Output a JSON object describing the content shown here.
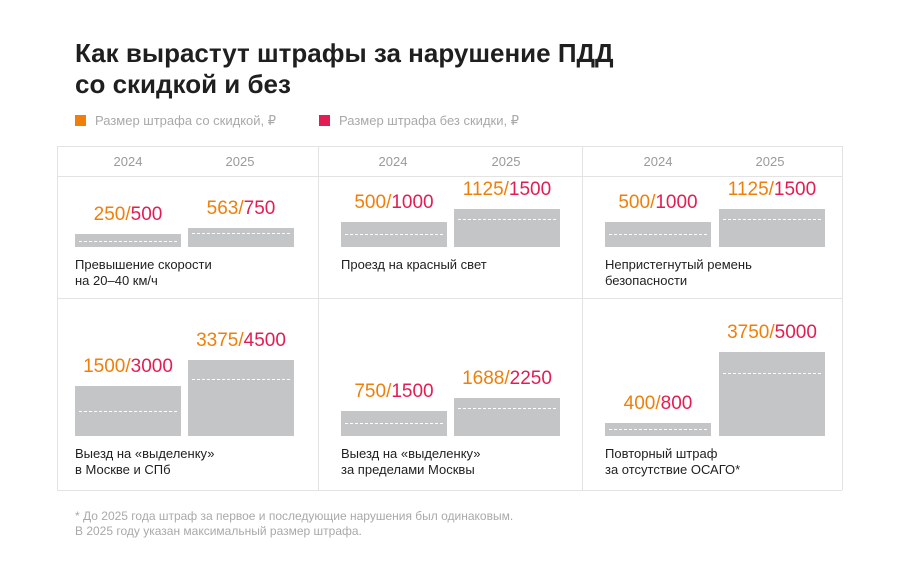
{
  "title_lines": [
    "Как вырастут штрафы за нарушение ПДД",
    "со скидкой и без"
  ],
  "legend": [
    {
      "label": "Размер штрафа со скидкой, ₽",
      "color": "#f07f0a"
    },
    {
      "label": "Размер штрафа без скидки, ₽",
      "color": "#e31d54"
    }
  ],
  "colors": {
    "discount": "#f07f0a",
    "full": "#e31d54",
    "bar": "#c4c5c7",
    "grid": "#e3e3e3"
  },
  "footnote": [
    "* До 2025 года штраф за первое и последующие нарушения был одинаковым.",
    "В 2025 году указан максимальный размер штрафа."
  ],
  "chart_data": {
    "type": "bar",
    "title": "Как вырастут штрафы за нарушение ПДД со скидкой и без",
    "categories": [
      "2024",
      "2025"
    ],
    "series_names": [
      "Размер штрафа со скидкой, ₽",
      "Размер штрафа без скидки, ₽"
    ],
    "panels": [
      {
        "caption": [
          "Превышение скорости",
          "на 20–40 км/ч"
        ],
        "years": [
          "2024",
          "2025"
        ],
        "discount": [
          250,
          563
        ],
        "full": [
          500,
          750
        ],
        "discount_text": [
          "250",
          "563"
        ],
        "full_text": [
          "500",
          "750"
        ]
      },
      {
        "caption": [
          "Проезд на красный свет"
        ],
        "years": [
          "2024",
          "2025"
        ],
        "discount": [
          500,
          1125
        ],
        "full": [
          1000,
          1500
        ],
        "discount_text": [
          "500",
          "1125"
        ],
        "full_text": [
          "1000",
          "1500"
        ]
      },
      {
        "caption": [
          "Непристегнутый ремень",
          "безопасности"
        ],
        "years": [
          "2024",
          "2025"
        ],
        "discount": [
          500,
          1125
        ],
        "full": [
          1000,
          1500
        ],
        "discount_text": [
          "500",
          "1125"
        ],
        "full_text": [
          "1000",
          "1500"
        ]
      },
      {
        "caption": [
          "Выезд на «выделенку»",
          "в Москве и СПб"
        ],
        "years": [
          "2024",
          "2025"
        ],
        "discount": [
          1500,
          3375
        ],
        "full": [
          3000,
          4500
        ],
        "discount_text": [
          "1500",
          "3375"
        ],
        "full_text": [
          "3000",
          "4500"
        ]
      },
      {
        "caption": [
          "Выезд на «выделенку»",
          "за пределами Москвы"
        ],
        "years": [
          "2024",
          "2025"
        ],
        "discount": [
          750,
          1688
        ],
        "full": [
          1500,
          2250
        ],
        "discount_text": [
          "750",
          "1688"
        ],
        "full_text": [
          "1500",
          "2250"
        ]
      },
      {
        "caption": [
          "Повторный штраф",
          "за отсутствие ОСАГО*"
        ],
        "years": [
          "2024",
          "2025"
        ],
        "discount": [
          400,
          3750
        ],
        "full": [
          800,
          5000
        ],
        "discount_text": [
          "400",
          "3750"
        ],
        "full_text": [
          "800",
          "5000"
        ]
      }
    ]
  }
}
